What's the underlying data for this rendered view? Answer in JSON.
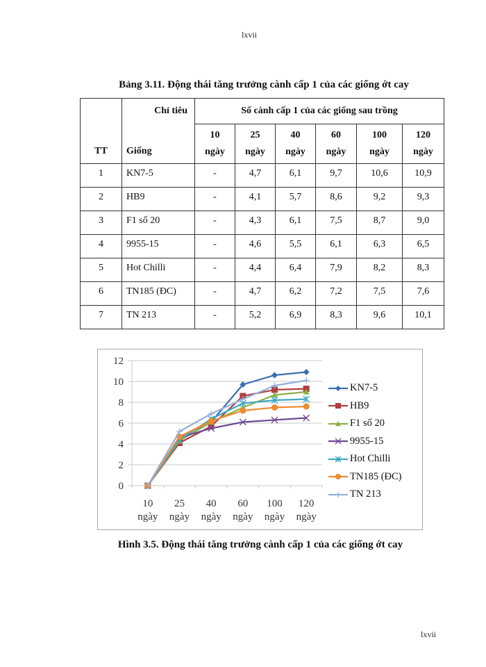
{
  "page": {
    "header_number": "lxvii",
    "footer_number": "lxvii"
  },
  "table": {
    "caption": "Bảng 3.11. Động thái tăng trưởng cành cấp 1 của các giống ớt cay",
    "header": {
      "tt": "TT",
      "chi_tieu": "Chỉ tiêu",
      "giong": "Giống",
      "group": "Số cành cấp 1 của các giống sau trồng",
      "days": [
        {
          "n": "10",
          "unit": "ngày"
        },
        {
          "n": "25",
          "unit": "ngày"
        },
        {
          "n": "40",
          "unit": "ngày"
        },
        {
          "n": "60",
          "unit": "ngày"
        },
        {
          "n": "100",
          "unit": "ngày"
        },
        {
          "n": "120",
          "unit": "ngày"
        }
      ]
    },
    "rows": [
      {
        "tt": "1",
        "giong": "KN7-5",
        "v": [
          "-",
          "4,7",
          "6,1",
          "9,7",
          "10,6",
          "10,9"
        ]
      },
      {
        "tt": "2",
        "giong": "HB9",
        "v": [
          "-",
          "4,1",
          "5,7",
          "8,6",
          "9,2",
          "9,3"
        ]
      },
      {
        "tt": "3",
        "giong": "F1 số 20",
        "v": [
          "-",
          "4,3",
          "6,1",
          "7,5",
          "8,7",
          "9,0"
        ]
      },
      {
        "tt": "4",
        "giong": "9955-15",
        "v": [
          "-",
          "4,6",
          "5,5",
          "6,1",
          "6,3",
          "6,5"
        ]
      },
      {
        "tt": "5",
        "giong": "Hot Chilli",
        "v": [
          "-",
          "4,4",
          "6,4",
          "7,9",
          "8,2",
          "8,3"
        ]
      },
      {
        "tt": "6",
        "giong": "TN185 (ĐC)",
        "v": [
          "-",
          "4,7",
          "6,2",
          "7,2",
          "7,5",
          "7,6"
        ]
      },
      {
        "tt": "7",
        "giong": "TN 213",
        "v": [
          "-",
          "5,2",
          "6,9",
          "8,3",
          "9,6",
          "10,1"
        ]
      }
    ]
  },
  "figure": {
    "caption": "Hình 3.5. Động thái tăng trưởng cành cấp 1 của các giống ớt cay"
  },
  "chart_data": {
    "type": "line",
    "title": "",
    "xlabel": "",
    "ylabel": "",
    "categories": [
      "10 ngày",
      "25 ngày",
      "40 ngày",
      "60 ngày",
      "100 ngày",
      "120 ngày"
    ],
    "yticks": [
      "0",
      "2",
      "4",
      "6",
      "8",
      "10",
      "12"
    ],
    "ylim": [
      0,
      12
    ],
    "grid": true,
    "legend_position": "right",
    "series": [
      {
        "name": "KN7-5",
        "color": "#3a6fb0",
        "marker": "diamond",
        "values": [
          0,
          4.7,
          6.1,
          9.7,
          10.6,
          10.9
        ]
      },
      {
        "name": "HB9",
        "color": "#b04040",
        "marker": "square",
        "values": [
          0,
          4.1,
          5.7,
          8.6,
          9.2,
          9.3
        ]
      },
      {
        "name": "F1 số 20",
        "color": "#8db04a",
        "marker": "triangle",
        "values": [
          0,
          4.3,
          6.1,
          7.5,
          8.7,
          9.0
        ]
      },
      {
        "name": "9955-15",
        "color": "#6e4a96",
        "marker": "x",
        "values": [
          0,
          4.6,
          5.5,
          6.1,
          6.3,
          6.5
        ]
      },
      {
        "name": "Hot Chilli",
        "color": "#3ea8c0",
        "marker": "star",
        "values": [
          0,
          4.4,
          6.4,
          7.9,
          8.2,
          8.3
        ]
      },
      {
        "name": "TN185 (ĐC)",
        "color": "#f08a30",
        "marker": "circle",
        "values": [
          0,
          4.7,
          6.2,
          7.2,
          7.5,
          7.6
        ]
      },
      {
        "name": "TN 213",
        "color": "#94b0dc",
        "marker": "plus",
        "values": [
          0,
          5.2,
          6.9,
          8.3,
          9.6,
          10.1
        ]
      }
    ]
  }
}
